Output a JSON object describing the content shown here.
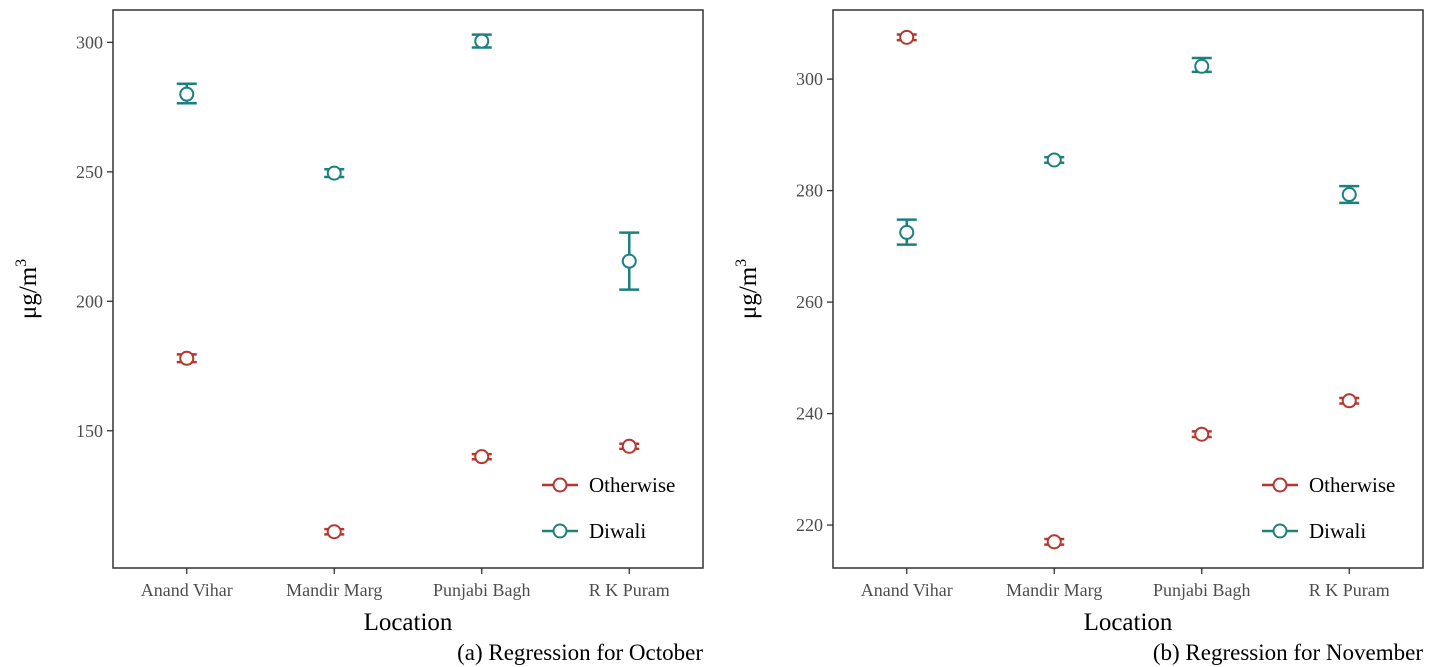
{
  "chart_data": [
    {
      "type": "scatter",
      "caption": "(a) Regression for October",
      "xlabel": "Location",
      "ylabel": "μg/m",
      "ylabel_superscript": "3",
      "categories": [
        "Anand Vihar",
        "Mandir Marg",
        "Punjabi Bagh",
        "R K Puram"
      ],
      "yticks": [
        150,
        200,
        250,
        300
      ],
      "ylim": [
        97,
        312.5
      ],
      "grid": false,
      "legend_position": "bottom-right",
      "series": [
        {
          "name": "Otherwise",
          "color": "#b5382f",
          "values": [
            178,
            111,
            140,
            144
          ],
          "lower": [
            176.5,
            110,
            139,
            143
          ],
          "upper": [
            179.5,
            112,
            141,
            145
          ]
        },
        {
          "name": "Diwali",
          "color": "#1a8080",
          "values": [
            280,
            249.5,
            300.5,
            215.5
          ],
          "lower": [
            276.5,
            248,
            298,
            204.5
          ],
          "upper": [
            284,
            251,
            303,
            226.5
          ]
        }
      ]
    },
    {
      "type": "scatter",
      "caption": "(b) Regression for November",
      "xlabel": "Location",
      "ylabel": "μg/m",
      "ylabel_superscript": "3",
      "categories": [
        "Anand Vihar",
        "Mandir Marg",
        "Punjabi Bagh",
        "R K Puram"
      ],
      "yticks": [
        220,
        240,
        260,
        280,
        300
      ],
      "ylim": [
        212.3,
        312.4
      ],
      "grid": false,
      "legend_position": "bottom-right",
      "series": [
        {
          "name": "Otherwise",
          "color": "#b5382f",
          "values": [
            307.5,
            217,
            236.3,
            242.3
          ],
          "lower": [
            307,
            216.5,
            235.8,
            241.8
          ],
          "upper": [
            308,
            217.5,
            236.8,
            242.8
          ]
        },
        {
          "name": "Diwali",
          "color": "#1a8080",
          "values": [
            272.5,
            285.5,
            302.3,
            279.3
          ],
          "lower": [
            270.3,
            285,
            301.3,
            277.8
          ],
          "upper": [
            274.8,
            286,
            303.8,
            280.8
          ]
        }
      ]
    }
  ]
}
